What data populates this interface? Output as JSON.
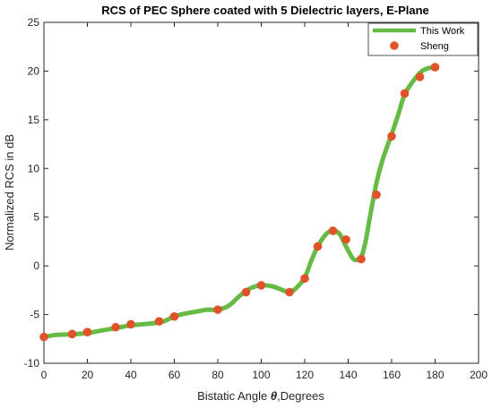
{
  "chart_data": {
    "type": "line",
    "title": "RCS of PEC Sphere coated with 5 Dielectric layers, E-Plane",
    "xlabel_prefix": "Bistatic Angle ",
    "xlabel_symbol": "θ",
    "xlabel_suffix": ",Degrees",
    "ylabel": "Normalized RCS in dB",
    "xlim": [
      0,
      200
    ],
    "ylim": [
      -10,
      25
    ],
    "xticks": [
      0,
      20,
      40,
      60,
      80,
      100,
      120,
      140,
      160,
      180,
      200
    ],
    "yticks": [
      -10,
      -5,
      0,
      5,
      10,
      15,
      20,
      25
    ],
    "grid": false,
    "legend_position": "top-right",
    "series": [
      {
        "name": "This Work",
        "style": "line",
        "color": "#66bb44",
        "x": [
          0,
          5,
          10,
          15,
          20,
          25,
          30,
          35,
          40,
          45,
          50,
          55,
          60,
          65,
          70,
          75,
          80,
          85,
          90,
          95,
          100,
          105,
          110,
          113,
          116,
          120,
          123,
          126,
          130,
          133,
          136,
          139,
          142,
          144,
          146,
          148,
          150,
          153,
          156,
          160,
          163,
          166,
          170,
          174,
          177,
          180
        ],
        "y": [
          -7.3,
          -7.1,
          -7.05,
          -7.0,
          -6.9,
          -6.7,
          -6.5,
          -6.3,
          -6.1,
          -6.0,
          -5.9,
          -5.7,
          -5.2,
          -4.9,
          -4.7,
          -4.5,
          -4.5,
          -4.1,
          -3.1,
          -2.3,
          -2.0,
          -2.1,
          -2.5,
          -2.7,
          -2.3,
          -1.2,
          0.5,
          2.0,
          3.3,
          3.6,
          3.3,
          2.0,
          0.8,
          0.6,
          0.9,
          2.5,
          5.0,
          8.5,
          11.0,
          13.5,
          15.5,
          17.6,
          19.0,
          20.0,
          20.3,
          20.4
        ]
      },
      {
        "name": "Sheng",
        "style": "markers",
        "color": "#e0532a",
        "x": [
          0,
          13,
          20,
          33,
          40,
          53,
          60,
          80,
          93,
          100,
          113,
          120,
          126,
          133,
          139,
          146,
          153,
          160,
          166,
          173,
          180
        ],
        "y": [
          -7.3,
          -7.0,
          -6.8,
          -6.3,
          -6.0,
          -5.7,
          -5.2,
          -4.5,
          -2.7,
          -2.0,
          -2.7,
          -1.3,
          2.0,
          3.6,
          2.7,
          0.7,
          7.3,
          13.3,
          17.7,
          19.4,
          20.4
        ]
      }
    ]
  }
}
